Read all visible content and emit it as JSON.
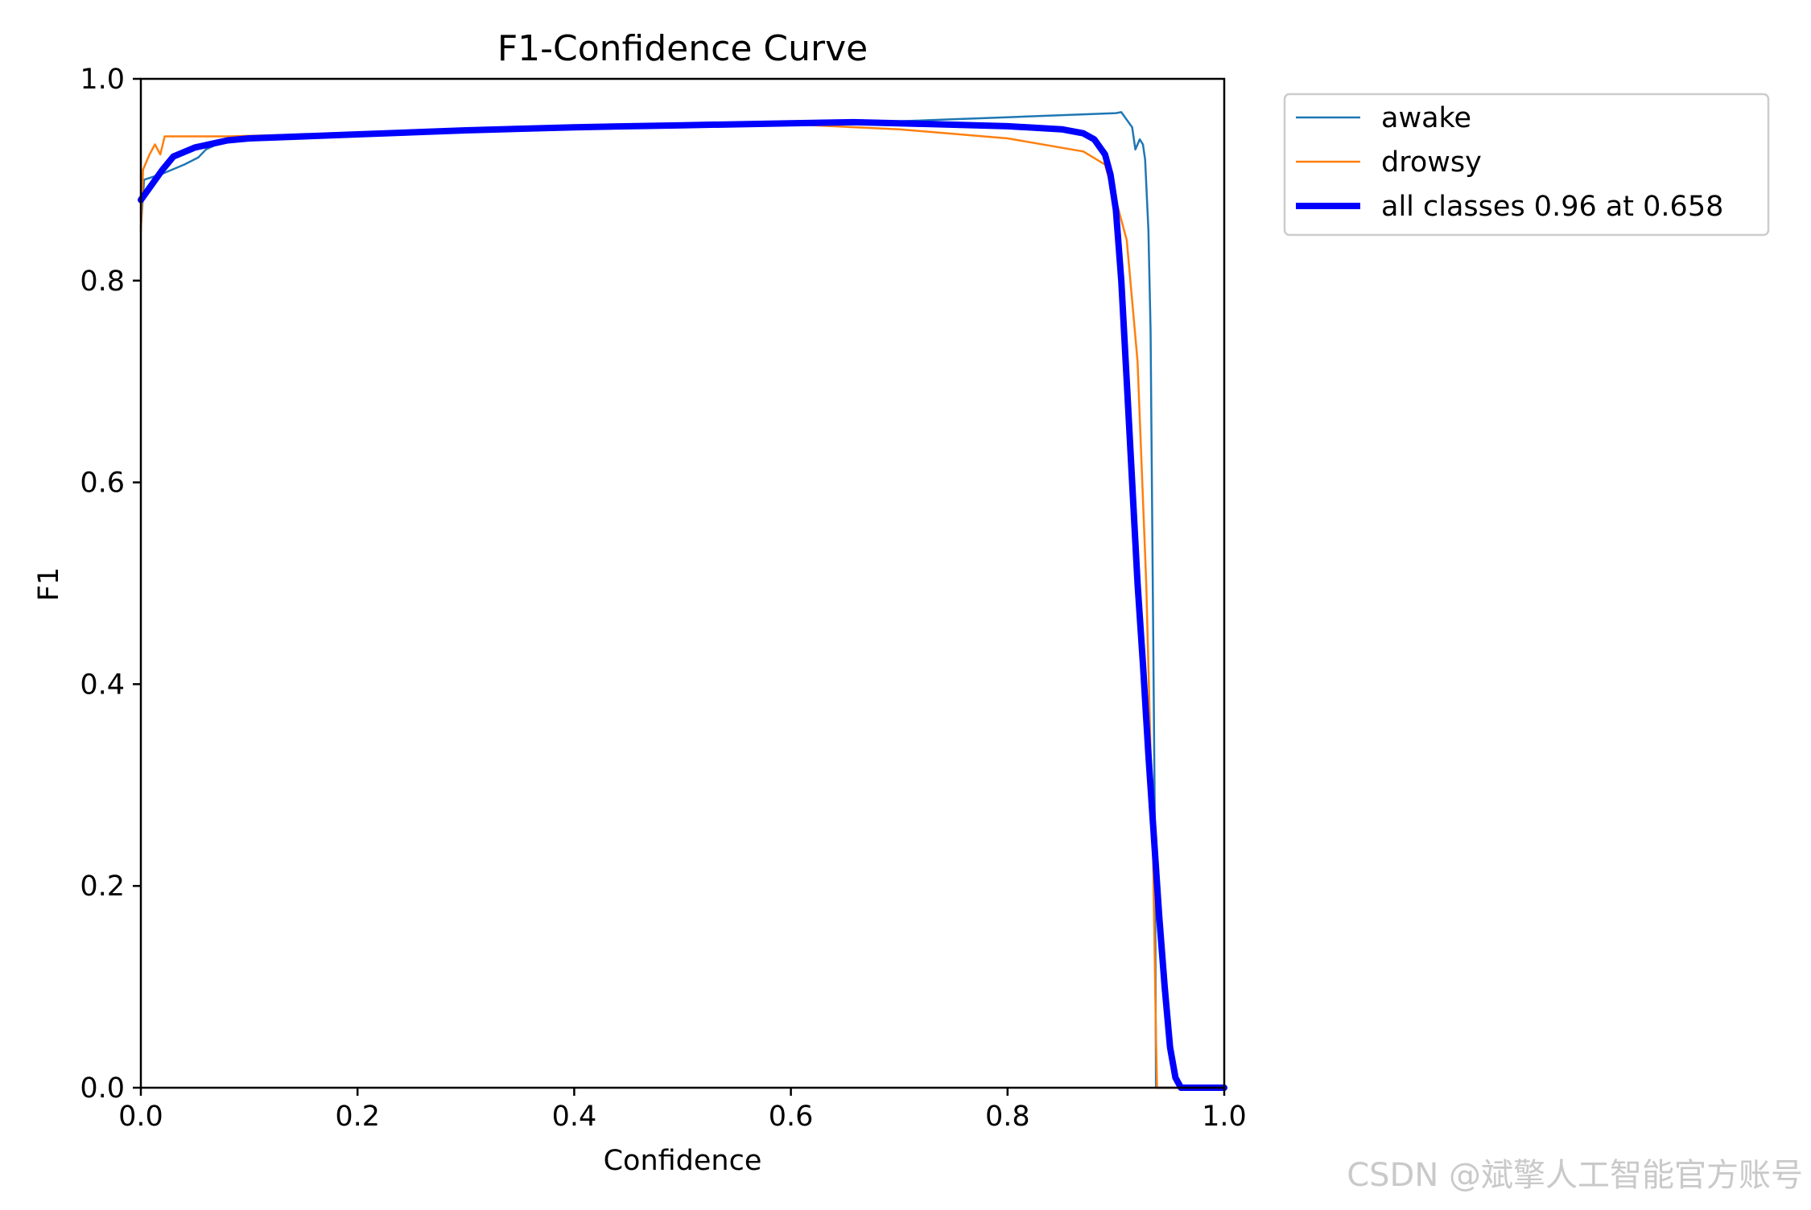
{
  "chart_data": {
    "type": "line",
    "title": "F1-Confidence Curve",
    "xlabel": "Confidence",
    "ylabel": "F1",
    "xlim": [
      0,
      1
    ],
    "ylim": [
      0,
      1
    ],
    "xticks": [
      "0.0",
      "0.2",
      "0.4",
      "0.6",
      "0.8",
      "1.0"
    ],
    "yticks": [
      "0.0",
      "0.2",
      "0.4",
      "0.6",
      "0.8",
      "1.0"
    ],
    "grid": false,
    "legend_position": "outside-top-right",
    "series": [
      {
        "name": "awake",
        "color": "#1f77b4",
        "points": [
          [
            0.0,
            0.853
          ],
          [
            0.003,
            0.9
          ],
          [
            0.02,
            0.906
          ],
          [
            0.04,
            0.915
          ],
          [
            0.053,
            0.922
          ],
          [
            0.06,
            0.93
          ],
          [
            0.08,
            0.94
          ],
          [
            0.1,
            0.942
          ],
          [
            0.2,
            0.946
          ],
          [
            0.3,
            0.95
          ],
          [
            0.4,
            0.952
          ],
          [
            0.5,
            0.954
          ],
          [
            0.6,
            0.956
          ],
          [
            0.7,
            0.958
          ],
          [
            0.8,
            0.962
          ],
          [
            0.9,
            0.966
          ],
          [
            0.905,
            0.967
          ],
          [
            0.915,
            0.952
          ],
          [
            0.918,
            0.93
          ],
          [
            0.922,
            0.94
          ],
          [
            0.925,
            0.935
          ],
          [
            0.927,
            0.92
          ],
          [
            0.93,
            0.85
          ],
          [
            0.932,
            0.75
          ],
          [
            0.934,
            0.5
          ],
          [
            0.936,
            0.25
          ],
          [
            0.937,
            0.0
          ],
          [
            1.0,
            0.0
          ]
        ]
      },
      {
        "name": "drowsy",
        "color": "#ff7f0e",
        "points": [
          [
            0.0,
            0.848
          ],
          [
            0.002,
            0.91
          ],
          [
            0.008,
            0.925
          ],
          [
            0.013,
            0.935
          ],
          [
            0.018,
            0.925
          ],
          [
            0.022,
            0.943
          ],
          [
            0.08,
            0.943
          ],
          [
            0.2,
            0.946
          ],
          [
            0.4,
            0.951
          ],
          [
            0.5,
            0.953
          ],
          [
            0.6,
            0.955
          ],
          [
            0.7,
            0.95
          ],
          [
            0.8,
            0.941
          ],
          [
            0.87,
            0.928
          ],
          [
            0.89,
            0.915
          ],
          [
            0.895,
            0.895
          ],
          [
            0.9,
            0.88
          ],
          [
            0.91,
            0.84
          ],
          [
            0.92,
            0.72
          ],
          [
            0.928,
            0.5
          ],
          [
            0.934,
            0.25
          ],
          [
            0.937,
            0.05
          ],
          [
            0.938,
            0.0
          ],
          [
            1.0,
            0.0
          ]
        ]
      },
      {
        "name": "all classes 0.96 at 0.658",
        "color": "#0000ff",
        "points": [
          [
            0.0,
            0.88
          ],
          [
            0.01,
            0.895
          ],
          [
            0.02,
            0.91
          ],
          [
            0.03,
            0.923
          ],
          [
            0.05,
            0.932
          ],
          [
            0.08,
            0.939
          ],
          [
            0.1,
            0.941
          ],
          [
            0.2,
            0.945
          ],
          [
            0.3,
            0.949
          ],
          [
            0.4,
            0.952
          ],
          [
            0.5,
            0.954
          ],
          [
            0.6,
            0.956
          ],
          [
            0.658,
            0.957
          ],
          [
            0.7,
            0.956
          ],
          [
            0.8,
            0.953
          ],
          [
            0.85,
            0.95
          ],
          [
            0.87,
            0.946
          ],
          [
            0.88,
            0.94
          ],
          [
            0.89,
            0.925
          ],
          [
            0.895,
            0.905
          ],
          [
            0.9,
            0.87
          ],
          [
            0.905,
            0.8
          ],
          [
            0.91,
            0.7
          ],
          [
            0.915,
            0.6
          ],
          [
            0.92,
            0.5
          ],
          [
            0.925,
            0.42
          ],
          [
            0.93,
            0.33
          ],
          [
            0.935,
            0.25
          ],
          [
            0.94,
            0.17
          ],
          [
            0.945,
            0.1
          ],
          [
            0.95,
            0.04
          ],
          [
            0.955,
            0.01
          ],
          [
            0.96,
            0.0
          ],
          [
            1.0,
            0.0
          ]
        ]
      }
    ]
  },
  "watermark": "CSDN @斌擎人工智能官方账号"
}
